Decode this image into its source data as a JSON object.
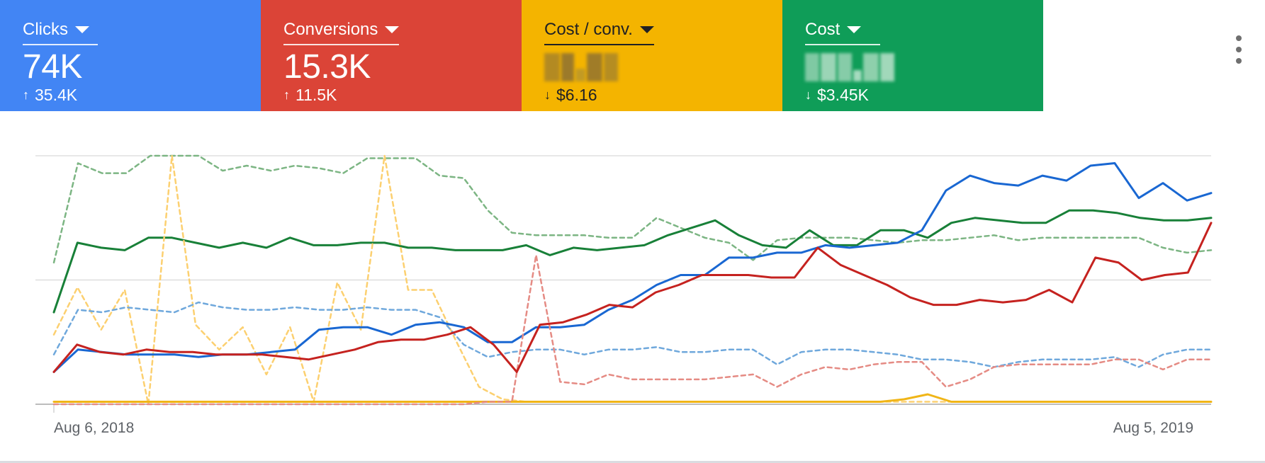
{
  "scorecards": [
    {
      "title": "Clicks",
      "value": "74K",
      "delta_dir": "up",
      "delta": "35.4K",
      "color": "#4285f4",
      "text_color": "#ffffff"
    },
    {
      "title": "Conversions",
      "value": "15.3K",
      "delta_dir": "up",
      "delta": "11.5K",
      "color": "#db4437",
      "text_color": "#ffffff"
    },
    {
      "title": "Cost / conv.",
      "value": "",
      "value_obscured": true,
      "delta_dir": "down",
      "delta": "$6.16",
      "color": "#f4b400",
      "text_color": "#202124"
    },
    {
      "title": "Cost",
      "value": "",
      "value_obscured": true,
      "delta_dir": "down",
      "delta": "$3.45K",
      "color": "#0f9d58",
      "text_color": "#ffffff"
    }
  ],
  "icons": {
    "up": "↑",
    "down": "↓",
    "dropdown": "caret-down-icon",
    "more": "more-vert-icon"
  },
  "chart_data": {
    "type": "line",
    "xlabel": "",
    "ylabel": "",
    "ylim": [
      0,
      100
    ],
    "grid": true,
    "x_start_label": "Aug 6, 2018",
    "x_end_label": "Aug 5, 2019",
    "series": [
      {
        "color": "#7cb583",
        "dashed": true,
        "values": [
          57,
          97,
          93,
          93,
          100,
          100,
          100,
          94,
          96,
          94,
          96,
          95,
          93,
          99,
          99,
          99,
          92,
          91,
          78,
          69,
          68,
          68,
          68,
          67,
          67,
          75,
          71,
          67,
          65,
          58,
          66,
          67,
          67,
          67,
          66,
          65,
          66,
          66,
          67,
          68,
          66,
          67,
          67,
          67,
          67,
          67,
          63,
          61,
          62
        ]
      },
      {
        "color": "#188038",
        "dashed": false,
        "values": [
          37,
          65,
          63,
          62,
          67,
          67,
          65,
          63,
          65,
          63,
          67,
          64,
          64,
          65,
          65,
          63,
          63,
          62,
          62,
          62,
          64,
          60,
          63,
          62,
          63,
          64,
          68,
          71,
          74,
          68,
          64,
          63,
          70,
          64,
          64,
          70,
          70,
          67,
          73,
          75,
          74,
          73,
          73,
          78,
          78,
          77,
          75,
          74,
          74,
          75
        ]
      },
      {
        "color": "#fcd070",
        "dashed": true,
        "values": [
          28,
          47,
          30,
          46,
          0,
          100,
          32,
          22,
          31,
          12,
          31,
          1,
          49,
          30,
          100,
          46,
          46,
          26,
          7,
          2,
          1,
          1,
          1,
          1,
          1,
          1,
          1,
          1,
          1,
          1,
          1,
          1,
          1,
          1,
          1,
          1,
          1,
          1,
          1,
          1,
          1,
          1,
          1,
          1,
          1,
          1,
          1,
          1,
          1,
          1
        ]
      },
      {
        "color": "#f0b517",
        "dashed": false,
        "values": [
          1,
          1,
          1,
          1,
          1,
          1,
          1,
          1,
          1,
          1,
          1,
          1,
          1,
          1,
          1,
          1,
          1,
          1,
          1,
          1,
          1,
          1,
          1,
          1,
          1,
          1,
          1,
          1,
          1,
          1,
          1,
          1,
          1,
          1,
          1,
          1,
          2,
          4,
          1,
          1,
          1,
          1,
          1,
          1,
          1,
          1,
          1,
          1,
          1,
          1
        ]
      },
      {
        "color": "#6fa8dc",
        "dashed": true,
        "values": [
          20,
          38,
          37,
          39,
          38,
          37,
          41,
          39,
          38,
          38,
          39,
          38,
          38,
          39,
          38,
          38,
          35,
          24,
          19,
          21,
          22,
          22,
          20,
          22,
          22,
          23,
          21,
          21,
          22,
          22,
          16,
          21,
          22,
          22,
          21,
          20,
          18,
          18,
          17,
          15,
          17,
          18,
          18,
          18,
          19,
          15,
          20,
          22,
          22
        ]
      },
      {
        "color": "#1967d2",
        "dashed": false,
        "values": [
          13,
          22,
          21,
          20,
          20,
          20,
          19,
          20,
          20,
          21,
          22,
          30,
          31,
          31,
          28,
          32,
          33,
          31,
          25,
          25,
          31,
          31,
          32,
          38,
          42,
          48,
          52,
          52,
          59,
          59,
          61,
          61,
          64,
          63,
          64,
          65,
          70,
          86,
          92,
          89,
          88,
          92,
          90,
          96,
          97,
          83,
          89,
          82,
          85
        ]
      },
      {
        "color": "#e58b84",
        "dashed": true,
        "values": [
          0,
          0,
          0,
          0,
          0,
          0,
          0,
          0,
          0,
          0,
          0,
          0,
          0,
          0,
          0,
          0,
          0,
          0,
          1,
          1,
          60,
          9,
          8,
          12,
          10,
          10,
          10,
          10,
          11,
          12,
          7,
          12,
          15,
          14,
          16,
          17,
          17,
          7,
          10,
          15,
          16,
          16,
          16,
          16,
          18,
          18,
          14,
          18,
          18
        ]
      },
      {
        "color": "#c5221f",
        "dashed": false,
        "values": [
          13,
          24,
          21,
          20,
          22,
          21,
          21,
          20,
          20,
          20,
          19,
          18,
          20,
          22,
          25,
          26,
          26,
          28,
          31,
          24,
          13,
          32,
          33,
          36,
          40,
          39,
          45,
          48,
          52,
          52,
          52,
          51,
          51,
          63,
          56,
          52,
          48,
          43,
          40,
          40,
          42,
          41,
          42,
          46,
          41,
          59,
          57,
          50,
          52,
          53,
          73
        ]
      }
    ]
  }
}
